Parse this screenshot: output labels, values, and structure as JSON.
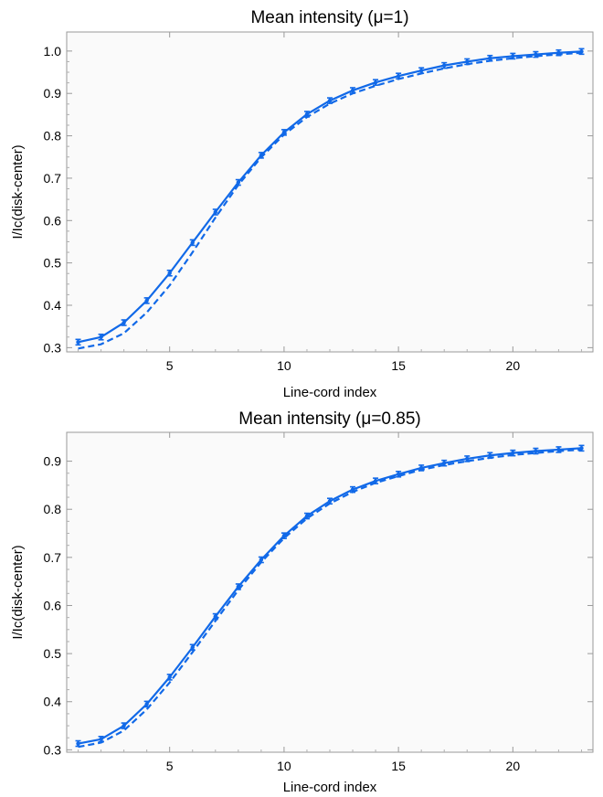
{
  "colors": {
    "series": "#1169e8",
    "frame": "#9a9a9a",
    "background": "#fafafa"
  },
  "chart_data": [
    {
      "type": "line",
      "title": "Mean intensity (μ=1)",
      "xlabel": "Line-cord index",
      "ylabel": "I/Ic(disk-center)",
      "xlim": [
        0.5,
        23.5
      ],
      "ylim": [
        0.29,
        1.045
      ],
      "xticks": [
        5,
        10,
        15,
        20
      ],
      "yticks": [
        0.3,
        0.4,
        0.5,
        0.6,
        0.7,
        0.8,
        0.9,
        1.0
      ],
      "grid": false,
      "legend": "none",
      "x": [
        1,
        2,
        3,
        4,
        5,
        6,
        7,
        8,
        9,
        10,
        11,
        12,
        13,
        14,
        15,
        16,
        17,
        18,
        19,
        20,
        21,
        22,
        23
      ],
      "series": [
        {
          "style": "solid",
          "error_bars": true,
          "values": [
            0.313,
            0.325,
            0.359,
            0.411,
            0.476,
            0.548,
            0.62,
            0.69,
            0.754,
            0.808,
            0.851,
            0.883,
            0.907,
            0.926,
            0.941,
            0.954,
            0.966,
            0.975,
            0.983,
            0.988,
            0.992,
            0.996,
            0.999
          ]
        },
        {
          "style": "dashed",
          "error_bars": false,
          "values": [
            0.298,
            0.308,
            0.334,
            0.383,
            0.447,
            0.525,
            0.607,
            0.684,
            0.749,
            0.803,
            0.844,
            0.876,
            0.9,
            0.918,
            0.934,
            0.947,
            0.959,
            0.969,
            0.977,
            0.983,
            0.988,
            0.992,
            0.996
          ]
        }
      ]
    },
    {
      "type": "line",
      "title": "Mean intensity (μ=0.85)",
      "xlabel": "Line-cord index",
      "ylabel": "I/Ic(disk-center)",
      "xlim": [
        0.5,
        23.5
      ],
      "ylim": [
        0.295,
        0.96
      ],
      "xticks": [
        5,
        10,
        15,
        20
      ],
      "yticks": [
        0.3,
        0.4,
        0.5,
        0.6,
        0.7,
        0.8,
        0.9
      ],
      "grid": false,
      "legend": "none",
      "x": [
        1,
        2,
        3,
        4,
        5,
        6,
        7,
        8,
        9,
        10,
        11,
        12,
        13,
        14,
        15,
        16,
        17,
        18,
        19,
        20,
        21,
        22,
        23
      ],
      "series": [
        {
          "style": "solid",
          "error_bars": true,
          "values": [
            0.313,
            0.322,
            0.35,
            0.395,
            0.451,
            0.513,
            0.577,
            0.639,
            0.695,
            0.745,
            0.786,
            0.817,
            0.841,
            0.859,
            0.873,
            0.886,
            0.896,
            0.905,
            0.912,
            0.917,
            0.921,
            0.924,
            0.927
          ]
        },
        {
          "style": "dashed",
          "error_bars": false,
          "values": [
            0.306,
            0.315,
            0.34,
            0.384,
            0.44,
            0.503,
            0.568,
            0.632,
            0.69,
            0.74,
            0.781,
            0.812,
            0.836,
            0.855,
            0.869,
            0.882,
            0.892,
            0.9,
            0.907,
            0.913,
            0.917,
            0.921,
            0.924
          ]
        }
      ]
    }
  ]
}
